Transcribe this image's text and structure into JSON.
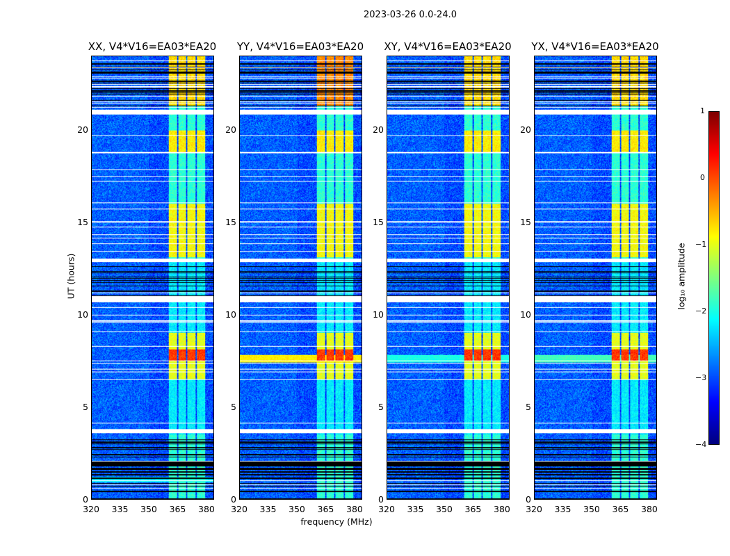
{
  "suptitle": "2023-03-26 0.0-24.0",
  "chart_data": [
    {
      "type": "heatmap",
      "title": "XX, V4*V16=EA03*EA20",
      "xlabel": "frequency (MHz)",
      "ylabel": "UT (hours)",
      "xlim": [
        320,
        384
      ],
      "ylim": [
        0,
        24
      ],
      "rfi_band_hours": [
        0.9,
        1.2
      ],
      "rfi_band_level": -2.2
    },
    {
      "type": "heatmap",
      "title": "YY, V4*V16=EA03*EA20",
      "xlabel": "frequency (MHz)",
      "ylabel": "",
      "xlim": [
        320,
        384
      ],
      "ylim": [
        0,
        24
      ],
      "rfi_band_hours": [
        7.4,
        7.8
      ],
      "rfi_band_level": -0.8
    },
    {
      "type": "heatmap",
      "title": "XY, V4*V16=EA03*EA20",
      "xlabel": "",
      "ylabel": "",
      "xlim": [
        320,
        384
      ],
      "ylim": [
        0,
        24
      ],
      "rfi_band_hours": [
        7.4,
        7.8
      ],
      "rfi_band_level": -2.0
    },
    {
      "type": "heatmap",
      "title": "YX, V4*V16=EA03*EA20",
      "xlabel": "",
      "ylabel": "",
      "xlim": [
        320,
        384
      ],
      "ylim": [
        0,
        24
      ],
      "rfi_band_hours": [
        7.4,
        7.8
      ],
      "rfi_band_level": -1.8
    }
  ],
  "common": {
    "xticks": [
      "320",
      "335",
      "350",
      "365",
      "380"
    ],
    "xtick_values": [
      320,
      335,
      350,
      365,
      380
    ],
    "yticks": [
      "0",
      "5",
      "10",
      "15",
      "20"
    ],
    "ytick_values": [
      0,
      5,
      10,
      15,
      20
    ],
    "xlabel": "frequency (MHz)",
    "ylabel": "UT (hours)",
    "background_level": -3.0,
    "bright_channels_mhz": [
      [
        360.5,
        364.8
      ],
      [
        365.5,
        369.5
      ],
      [
        370.2,
        374.5
      ],
      [
        375.2,
        379.6
      ]
    ],
    "active_periods_hours": [
      {
        "range": [
          21.3,
          24
        ],
        "level": -0.7
      },
      {
        "range": [
          18.8,
          20
        ],
        "level": -0.8
      },
      {
        "range": [
          13.1,
          16
        ],
        "level": -0.9
      },
      {
        "range": [
          6.5,
          9
        ],
        "level": -1.0
      },
      {
        "range": [
          7.5,
          8.1
        ],
        "level": 0.1
      },
      {
        "range": [
          0,
          3.5
        ],
        "level": -1.9
      }
    ],
    "flagged_hours": [
      [
        20.9,
        21.1
      ],
      [
        12.9,
        13.05
      ],
      [
        10.7,
        11.0
      ],
      [
        3.6,
        3.8
      ]
    ]
  },
  "colorbar": {
    "label": "log₁₀ amplitude",
    "range": [
      -4,
      1
    ],
    "ticks": [
      "1",
      "0",
      "−1",
      "−2",
      "−3",
      "−4"
    ],
    "tick_values": [
      1,
      0,
      -1,
      -2,
      -3,
      -4
    ],
    "colormap": "jet"
  }
}
